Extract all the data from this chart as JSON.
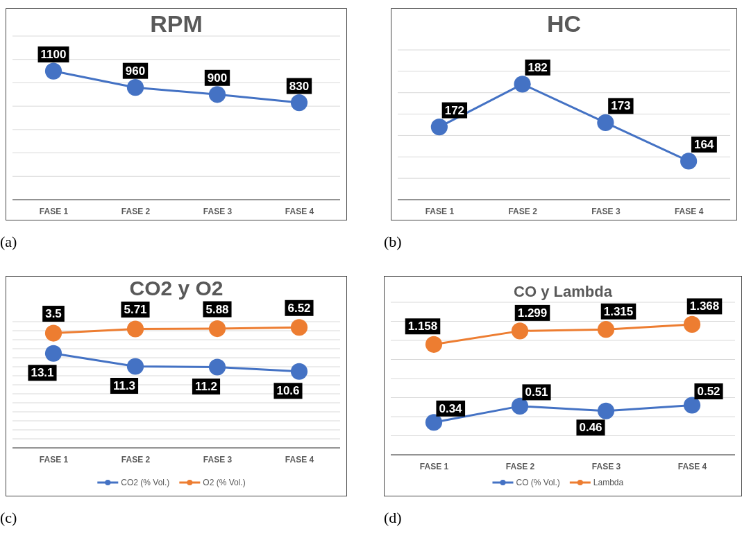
{
  "chart_data": [
    {
      "type": "line",
      "title": "RPM",
      "categories": [
        "FASE 1",
        "FASE 2",
        "FASE 3",
        "FASE 4"
      ],
      "series": [
        {
          "color": "#4472c4",
          "values": [
            1100,
            960,
            900,
            830
          ]
        }
      ],
      "ylim": [
        0,
        1400
      ],
      "yticks": [
        {
          "value": 0,
          "label": null
        },
        {
          "value": 200,
          "label": null
        },
        {
          "value": 400,
          "label": null
        },
        {
          "value": 600,
          "label": null
        },
        {
          "value": 800,
          "label": null
        },
        {
          "value": 1000,
          "label": null
        },
        {
          "value": 1200,
          "label": null
        },
        {
          "value": 1400,
          "label": null
        }
      ],
      "grid": "y",
      "tick_labels": "x",
      "data_labels": true,
      "marker": "circle",
      "line_style": "solid",
      "legend": false,
      "annotations": [
        "(a)"
      ]
    },
    {
      "type": "line",
      "title": "HC",
      "categories": [
        "FASE 1",
        "FASE 2",
        "FASE 3",
        "FASE 4"
      ],
      "series": [
        {
          "color": "#4472c4",
          "values": [
            172,
            182,
            173,
            164
          ]
        }
      ],
      "ylim": [
        155,
        190
      ],
      "yticks": [
        {
          "value": 155,
          "label": null
        },
        {
          "value": 160,
          "label": null
        },
        {
          "value": 165,
          "label": null
        },
        {
          "value": 170,
          "label": null
        },
        {
          "value": 175,
          "label": null
        },
        {
          "value": 180,
          "label": null
        },
        {
          "value": 185,
          "label": null
        },
        {
          "value": 190,
          "label": null
        }
      ],
      "grid": "y",
      "tick_labels": "x",
      "data_labels": true,
      "marker": "circle",
      "line_style": "solid",
      "legend": false,
      "annotations": [
        "(b)"
      ]
    },
    {
      "type": "line",
      "title": "CO2 y O2",
      "categories": [
        "FASE 1",
        "FASE 2",
        "FASE 3",
        "FASE 4"
      ],
      "series": [
        {
          "name": "CO2 (% Vol.)",
          "color": "#4472c4",
          "values": [
            13.1,
            11.3,
            11.2,
            10.6
          ]
        },
        {
          "name": "O2 (% Vol.)",
          "color": "#ed7d31",
          "values": [
            3.5,
            5.71,
            5.88,
            6.52
          ],
          "axis": "y2"
        }
      ],
      "ylim": [
        0,
        17.5
      ],
      "yticks": [
        {
          "value": 0,
          "label": null
        },
        {
          "value": 1.25,
          "label": null
        },
        {
          "value": 2.5,
          "label": null
        },
        {
          "value": 3.75,
          "label": null
        },
        {
          "value": 5,
          "label": null
        },
        {
          "value": 6.25,
          "label": null
        },
        {
          "value": 7.5,
          "label": null
        },
        {
          "value": 8.75,
          "label": null
        },
        {
          "value": 10,
          "label": null
        },
        {
          "value": 11.25,
          "label": null
        },
        {
          "value": 12.5,
          "label": null
        },
        {
          "value": 13.75,
          "label": null
        },
        {
          "value": 15,
          "label": null
        },
        {
          "value": 16.25,
          "label": null
        },
        {
          "value": 17.5,
          "label": null
        }
      ],
      "grid": "y",
      "tick_labels": "x",
      "data_labels": true,
      "marker": "circle",
      "line_style": "solid",
      "legend": "bottom",
      "annotations": [
        "(c)"
      ]
    },
    {
      "type": "line",
      "title": "CO y Lambda",
      "categories": [
        "FASE 1",
        "FASE 2",
        "FASE 3",
        "FASE 4"
      ],
      "series": [
        {
          "name": "CO (% Vol.)",
          "color": "#4472c4",
          "values": [
            0.34,
            0.51,
            0.46,
            0.52
          ]
        },
        {
          "name": "Lambda",
          "color": "#ed7d31",
          "values": [
            1.158,
            1.299,
            1.315,
            1.368
          ]
        }
      ],
      "ylim": [
        0,
        1.6
      ],
      "yticks": [
        {
          "value": 0,
          "label": null
        },
        {
          "value": 0.2,
          "label": null
        },
        {
          "value": 0.4,
          "label": null
        },
        {
          "value": 0.6,
          "label": null
        },
        {
          "value": 0.8,
          "label": null
        },
        {
          "value": 1.0,
          "label": null
        },
        {
          "value": 1.2,
          "label": null
        },
        {
          "value": 1.4,
          "label": null
        },
        {
          "value": 1.6,
          "label": null
        }
      ],
      "grid": "y",
      "tick_labels": "x",
      "data_labels": true,
      "marker": "circle",
      "line_style": "solid",
      "legend": "bottom",
      "annotations": [
        "(d)"
      ]
    }
  ]
}
